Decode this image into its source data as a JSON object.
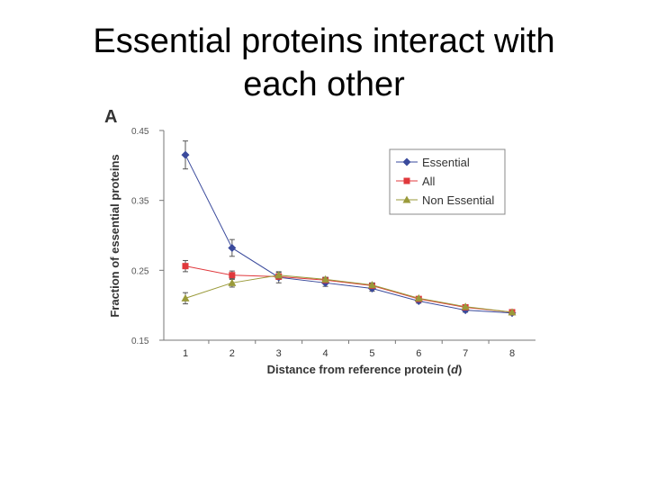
{
  "slide": {
    "title": "Essential proteins interact with each other"
  },
  "colors": {
    "essential": "#3a4a9c",
    "all": "#e0383c",
    "non_essential": "#9a9a3a",
    "axis": "#777777"
  },
  "chart_data": {
    "type": "line",
    "panel_label": "A",
    "title": "",
    "xlabel_main": "Distance from reference protein (",
    "xlabel_var": "d",
    "xlabel_close": ")",
    "ylabel": "Fraction of essential proteins",
    "x": [
      1,
      2,
      3,
      4,
      5,
      6,
      7,
      8
    ],
    "xlim": [
      0.5,
      8.5
    ],
    "ylim": [
      0.15,
      0.45
    ],
    "yticks": [
      "0.15",
      "0.25",
      "0.35",
      "0.45"
    ],
    "ytick_values": [
      0.15,
      0.25,
      0.35,
      0.45
    ],
    "legend_position": "top-right",
    "grid": false,
    "series": [
      {
        "name": "Essential",
        "marker": "diamond",
        "values": [
          0.415,
          0.282,
          0.24,
          0.232,
          0.224,
          0.206,
          0.193,
          0.189
        ],
        "error": [
          0.02,
          0.012,
          0.008,
          0.005,
          0.004,
          0.003,
          0.003,
          0.002
        ]
      },
      {
        "name": "All",
        "marker": "square",
        "values": [
          0.256,
          0.243,
          0.241,
          0.236,
          0.228,
          0.209,
          0.197,
          0.19
        ],
        "error": [
          0.008,
          0.006,
          0.004,
          0.003,
          0.003,
          0.002,
          0.002,
          0.002
        ]
      },
      {
        "name": "Non Essential",
        "marker": "triangle",
        "values": [
          0.21,
          0.232,
          0.243,
          0.237,
          0.229,
          0.21,
          0.198,
          0.19
        ],
        "error": [
          0.008,
          0.006,
          0.004,
          0.003,
          0.003,
          0.002,
          0.002,
          0.002
        ]
      }
    ]
  }
}
